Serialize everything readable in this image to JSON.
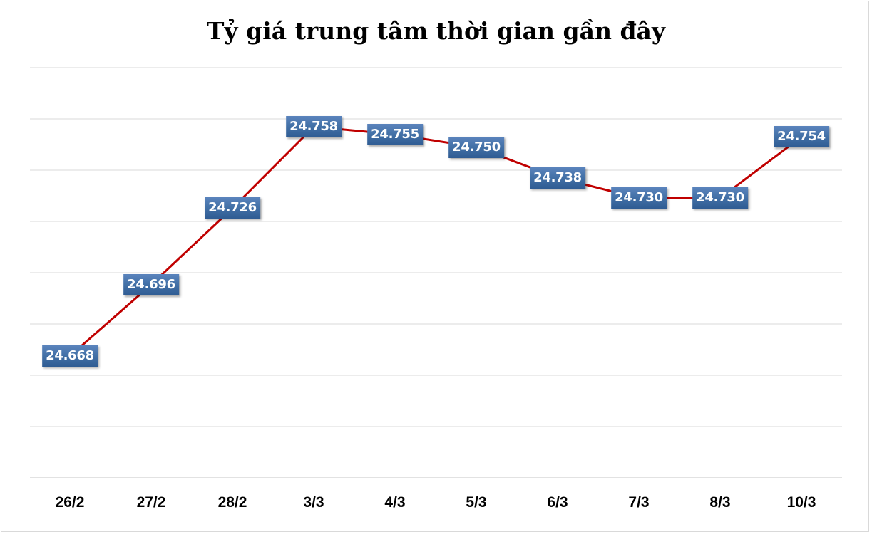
{
  "chart_data": {
    "type": "line",
    "title": "Tỷ giá trung tâm thời gian gần đây",
    "xlabel": "",
    "ylabel": "",
    "categories": [
      "26/2",
      "27/2",
      "28/2",
      "3/3",
      "4/3",
      "5/3",
      "6/3",
      "7/3",
      "8/3",
      "10/3"
    ],
    "series": [
      {
        "name": "Tỷ giá trung tâm",
        "values": [
          24668,
          24696,
          24726,
          24758,
          24755,
          24750,
          24738,
          24730,
          24730,
          24754
        ],
        "labels": [
          "24.668",
          "24.696",
          "24.726",
          "24.758",
          "24.755",
          "24.750",
          "24.738",
          "24.730",
          "24.730",
          "24.754"
        ],
        "color": "#c00000"
      }
    ],
    "grid": true,
    "legend": "none",
    "y_axis_labels_visible": false,
    "data_label_color": "#3f6ca6"
  },
  "colors": {
    "line": "#c00000",
    "gridline": "#d9d9d9",
    "label_bg": "#3f6ca6",
    "label_text": "#ffffff"
  }
}
